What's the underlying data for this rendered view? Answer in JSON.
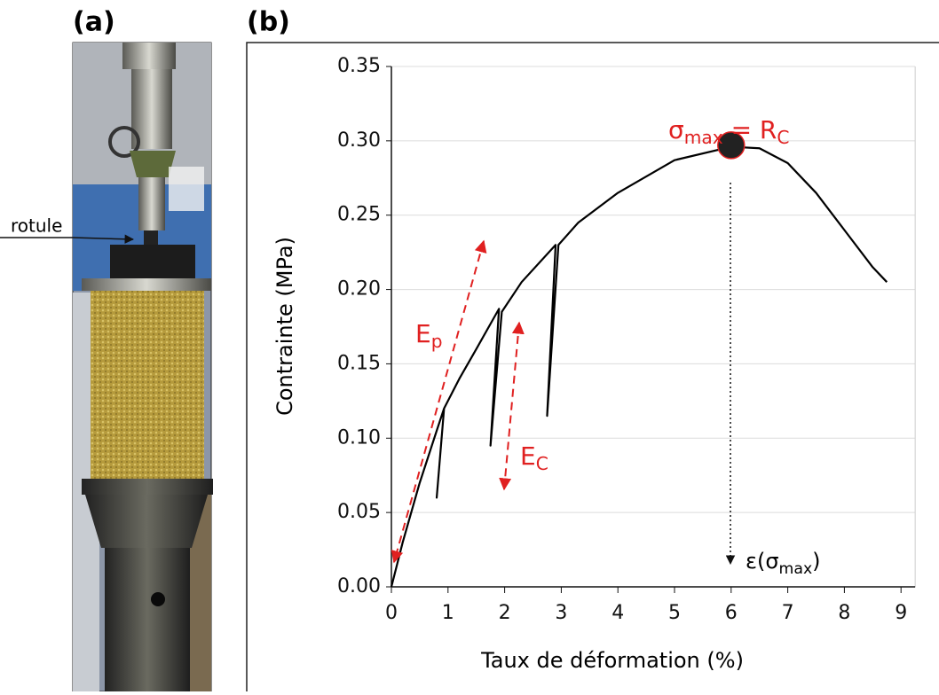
{
  "panels": [
    "(a)",
    "(b)"
  ],
  "photo_label": "rotule",
  "chart_data": {
    "type": "line",
    "x_label": "Taux de déformation (%)",
    "y_label": "Contrainte (MPa)",
    "series": [
      {
        "color": "#000000",
        "x": [
          0,
          0.2,
          0.5,
          0.8,
          0.93,
          0.8,
          0.93,
          1.2,
          1.5,
          1.9,
          1.75,
          1.95,
          2.3,
          2.9,
          2.75,
          2.95,
          3.3,
          4,
          5,
          6,
          6.5,
          7,
          7.5,
          8,
          8.5,
          8.75
        ],
        "values": [
          0,
          0.03,
          0.07,
          0.105,
          0.12,
          0.06,
          0.12,
          0.14,
          0.16,
          0.187,
          0.095,
          0.185,
          0.205,
          0.23,
          0.115,
          0.23,
          0.245,
          0.265,
          0.287,
          0.296,
          0.295,
          0.285,
          0.265,
          0.24,
          0.215,
          0.205
        ]
      }
    ],
    "marker": {
      "x": 6,
      "y": 0.297,
      "color": "#222222",
      "edge": "#e02020"
    },
    "annotations": {
      "peak": [
        "σ",
        "max",
        " = R",
        "C"
      ],
      "ep": [
        "E",
        "p"
      ],
      "ec": [
        "E",
        "C"
      ],
      "strain": [
        "ε(σ",
        "max",
        ")"
      ]
    },
    "annotation_color": "#e02020",
    "xlim": [
      0,
      9.25
    ],
    "ylim": [
      0,
      0.35
    ],
    "xticks": [
      0,
      1,
      2,
      3,
      4,
      5,
      6,
      7,
      8,
      9
    ],
    "yticks": [
      {
        "value": 0,
        "label": "0.00"
      },
      {
        "value": 0.05,
        "label": "0.05"
      },
      {
        "value": 0.1,
        "label": "0.10"
      },
      {
        "value": 0.15,
        "label": "0.15"
      },
      {
        "value": 0.2,
        "label": "0.20"
      },
      {
        "value": 0.25,
        "label": "0.25"
      },
      {
        "value": 0.3,
        "label": "0.30"
      },
      {
        "value": 0.35,
        "label": "0.35"
      }
    ],
    "grid": true
  }
}
